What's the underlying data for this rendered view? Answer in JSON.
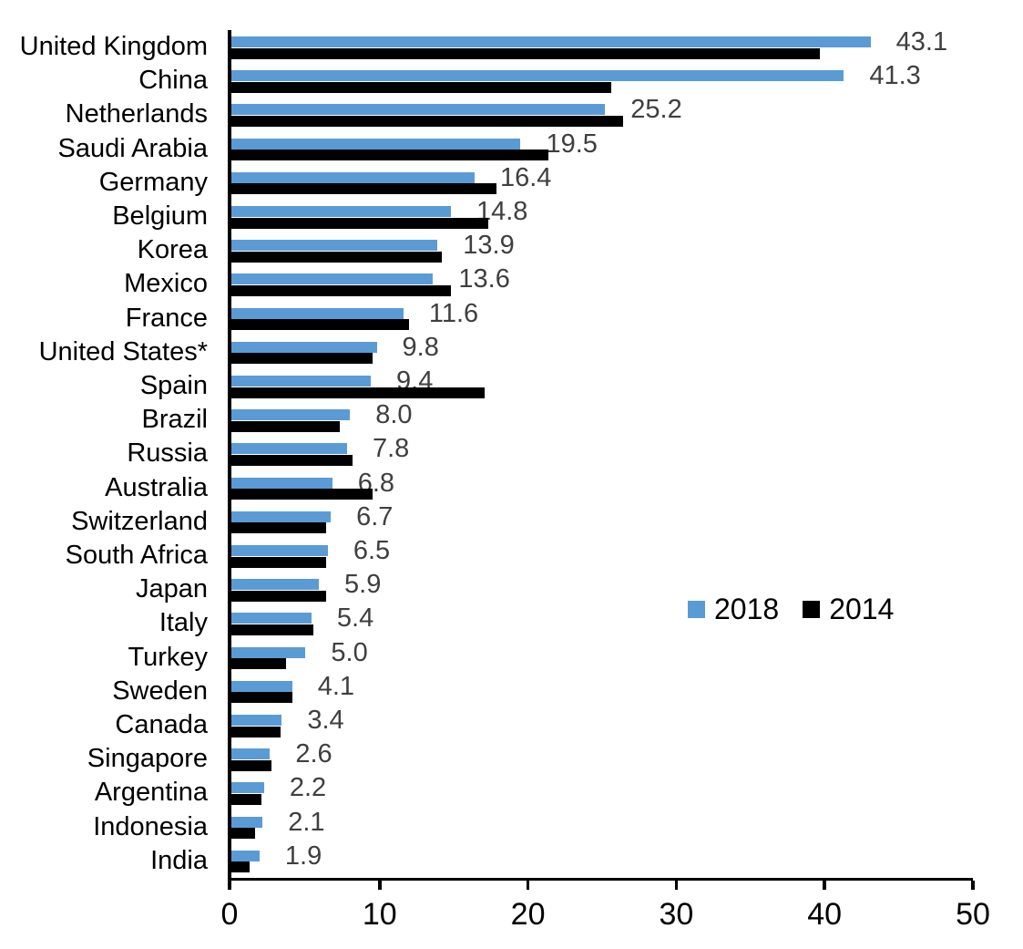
{
  "chart_data": {
    "type": "bar",
    "orientation": "horizontal",
    "title": "",
    "xlabel": "",
    "ylabel": "",
    "xlim": [
      0,
      50
    ],
    "x_ticks": [
      "0",
      "10",
      "20",
      "30",
      "40",
      "50"
    ],
    "grid": false,
    "legend_position": "middle-right",
    "value_label_color": "#3F3F3F",
    "categories": [
      "United Kingdom",
      "China",
      "Netherlands",
      "Saudi Arabia",
      "Germany",
      "Belgium",
      "Korea",
      "Mexico",
      "France",
      "United States*",
      "Spain",
      "Brazil",
      "Russia",
      "Australia",
      "Switzerland",
      "South Africa",
      "Japan",
      "Italy",
      "Turkey",
      "Sweden",
      "Canada",
      "Singapore",
      "Argentina",
      "Indonesia",
      "India"
    ],
    "series": [
      {
        "name": "2018",
        "color": "#5B9BD5",
        "data_labels": true,
        "values": [
          43.1,
          41.3,
          25.2,
          19.5,
          16.4,
          14.8,
          13.9,
          13.6,
          11.6,
          9.8,
          9.4,
          8.0,
          7.8,
          6.8,
          6.7,
          6.5,
          5.9,
          5.4,
          5.0,
          4.1,
          3.4,
          2.6,
          2.2,
          2.1,
          1.9
        ]
      },
      {
        "name": "2014",
        "color": "#000000",
        "data_labels": false,
        "values": [
          39.7,
          25.6,
          26.4,
          21.4,
          17.9,
          17.3,
          14.2,
          14.8,
          12.0,
          9.5,
          17.1,
          7.3,
          8.2,
          9.5,
          6.4,
          6.4,
          6.4,
          5.5,
          3.7,
          4.1,
          3.3,
          2.7,
          2.0,
          1.6,
          1.2
        ]
      }
    ],
    "value_labels_shown": [
      "43.1",
      "41.3",
      "25.2",
      "19.5",
      "16.4",
      "14.8",
      "13.9",
      "13.6",
      "11.6",
      "9.8",
      "9.4",
      "8.0",
      "7.8",
      "6.8",
      "6.7",
      "6.5",
      "5.9",
      "5.4",
      "5.0",
      "4.1",
      "3.4",
      "2.6",
      "2.2",
      "2.1",
      "1.9"
    ]
  }
}
